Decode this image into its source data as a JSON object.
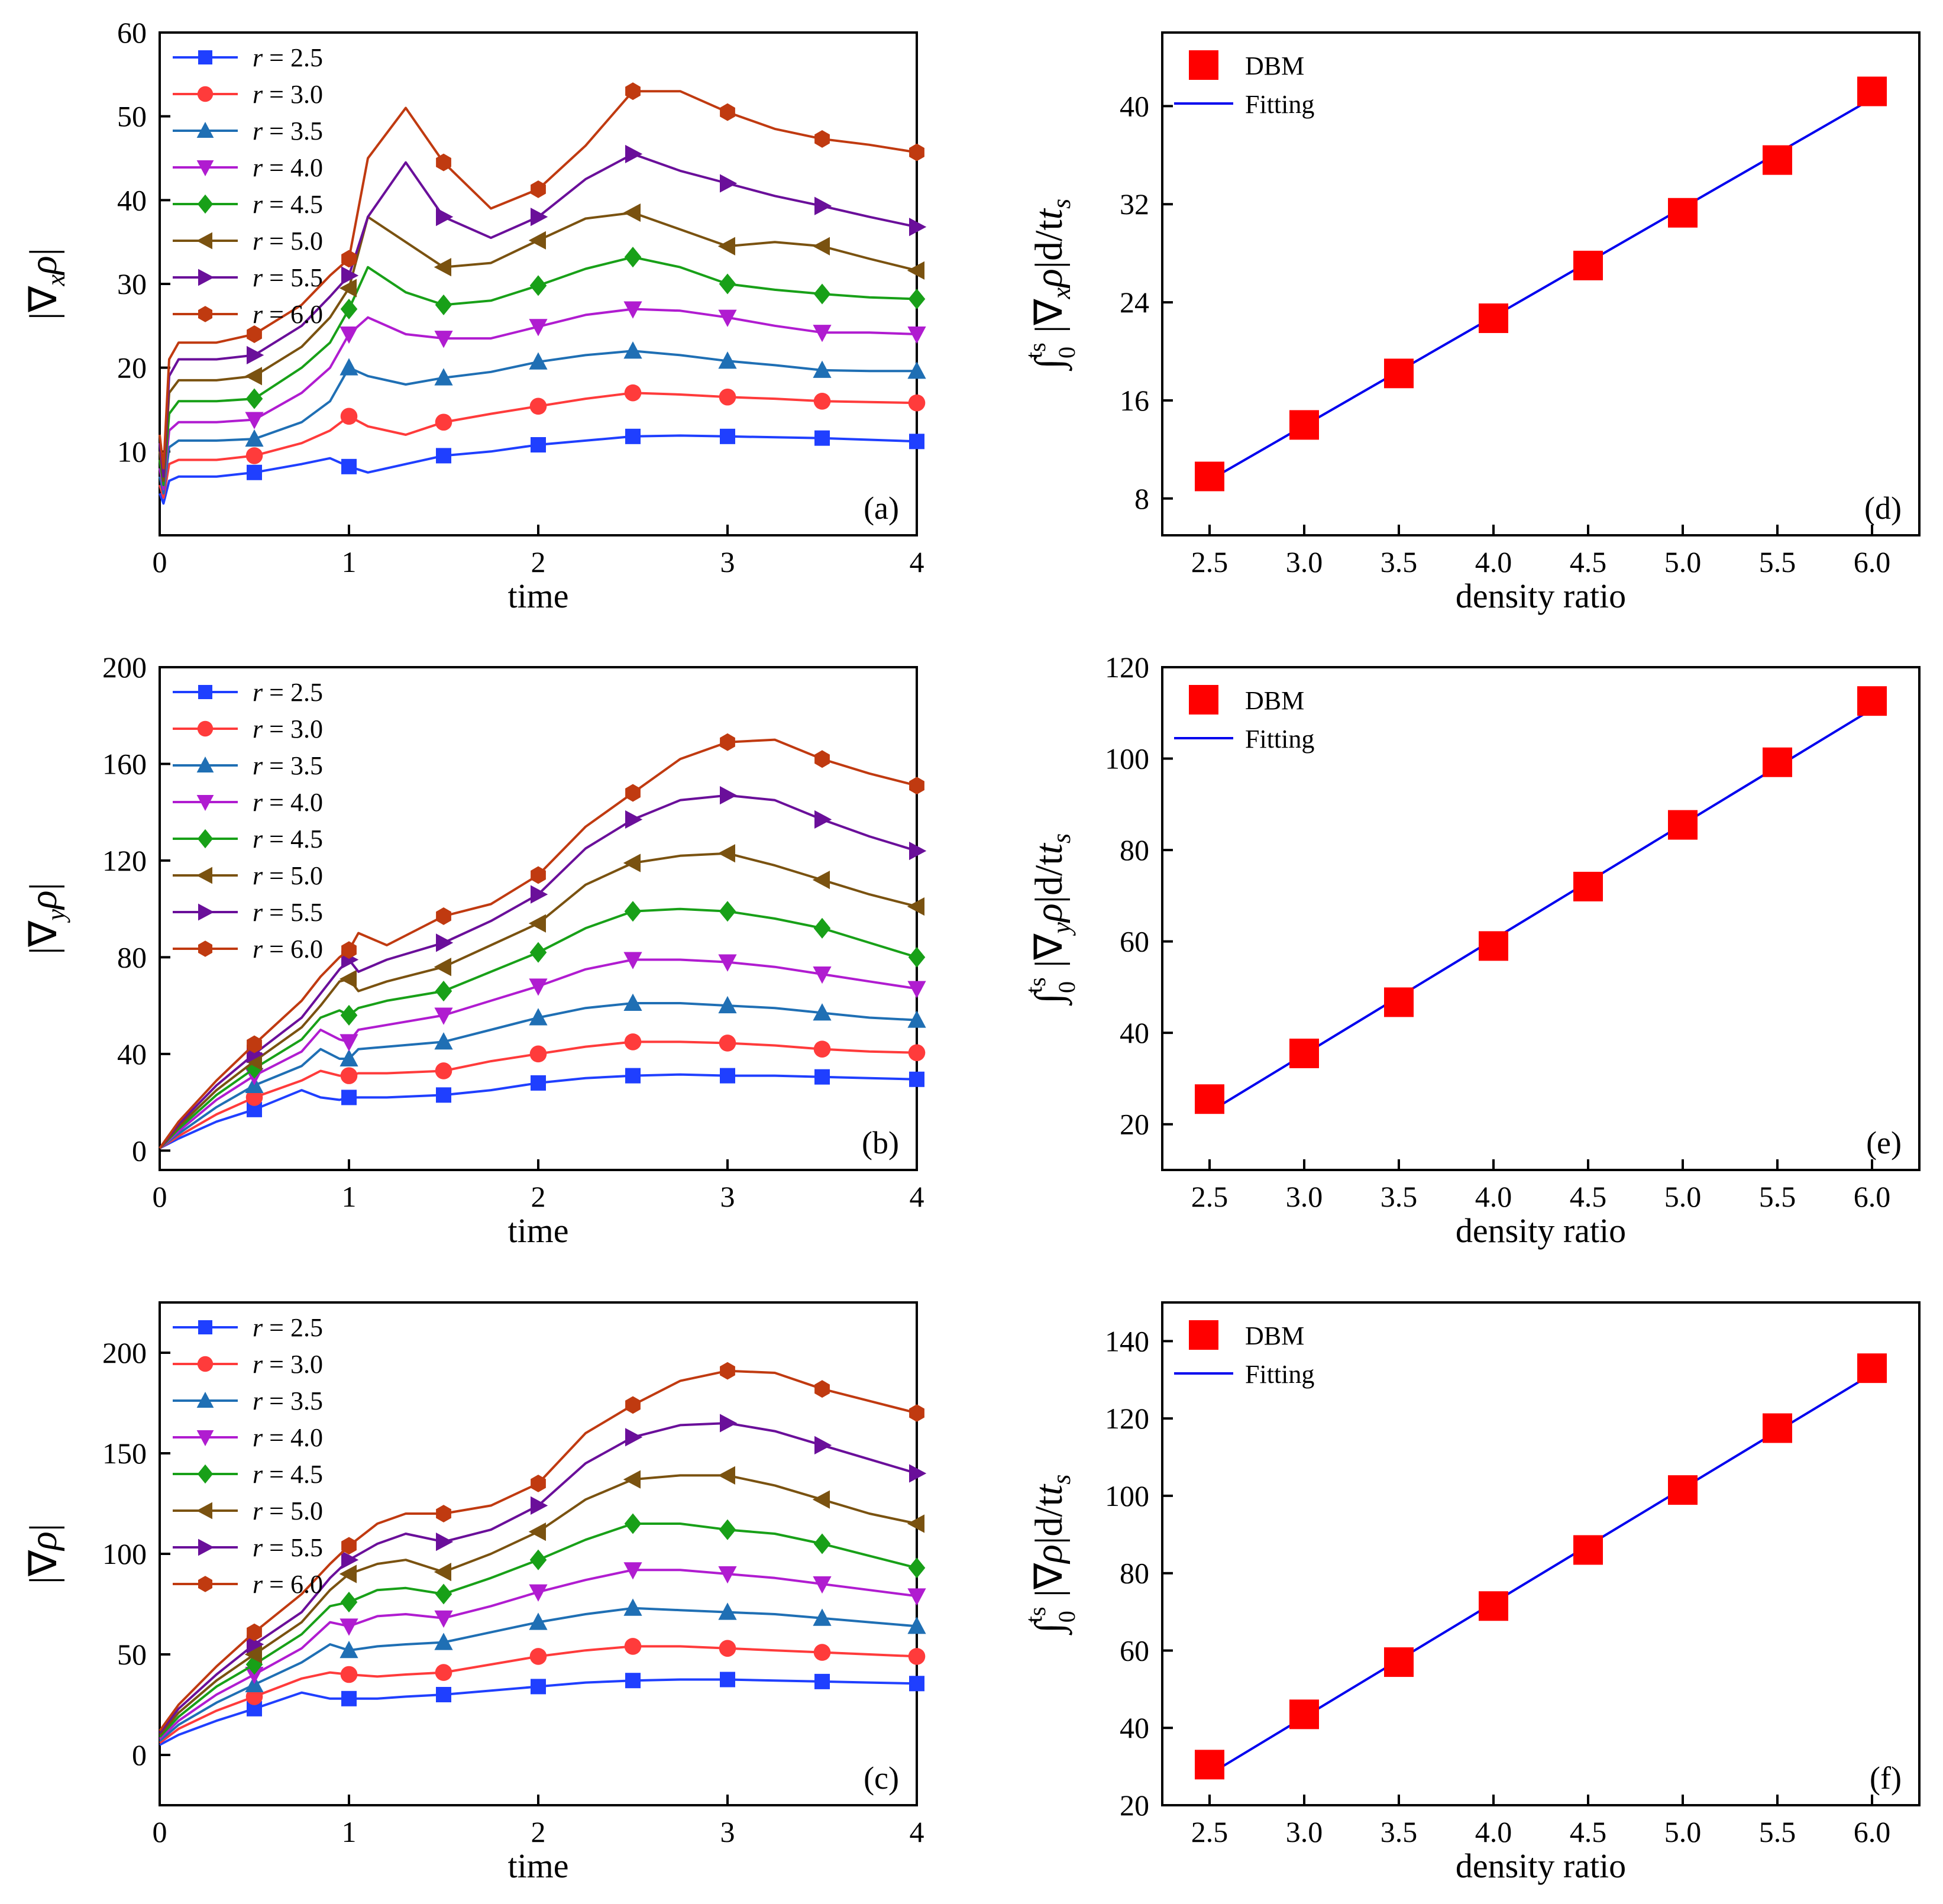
{
  "colors": [
    "#1f3fff",
    "#ff3b3b",
    "#1f6fb4",
    "#b01cd0",
    "#18a018",
    "#7a5210",
    "#6a0f9a",
    "#c03a10"
  ],
  "dbm_color": "#ff0000",
  "fit_color": "#0000ee",
  "chart_data": [
    {
      "id": "a",
      "type": "line",
      "panel_label": "(a)",
      "xlabel": "time",
      "ylabel": {
        "main": "|∇",
        "sub": "x",
        "rho": "ρ",
        "tail": "|"
      },
      "xlim": [
        0,
        4
      ],
      "ylim": [
        0,
        60
      ],
      "xticks": [
        0,
        1,
        2,
        3,
        4
      ],
      "xtick_labels": [
        "0",
        "1",
        "2",
        "3",
        "4"
      ],
      "yticks": [
        10,
        20,
        30,
        40,
        50,
        60
      ],
      "ytick_labels": [
        "10",
        "20",
        "30",
        "40",
        "50",
        "60"
      ],
      "x": [
        0,
        0.02,
        0.05,
        0.1,
        0.3,
        0.5,
        0.75,
        0.9,
        1.0,
        1.1,
        1.3,
        1.5,
        1.75,
        2.0,
        2.25,
        2.5,
        2.75,
        3.0,
        3.25,
        3.5,
        3.75,
        4.0
      ],
      "markers_x": [
        0.5,
        1.0,
        1.5,
        2.0,
        2.5,
        3.0,
        3.5,
        4.0
      ],
      "series": [
        {
          "name": "r = 2.5",
          "marker": "square",
          "values": [
            5,
            3.8,
            6.5,
            7,
            7,
            7.5,
            8.5,
            9.2,
            8.2,
            7.5,
            8.5,
            9.5,
            10,
            10.8,
            11.3,
            11.8,
            11.9,
            11.8,
            11.7,
            11.6,
            11.4,
            11.2
          ]
        },
        {
          "name": "r = 3.0",
          "marker": "circle",
          "values": [
            6,
            4.5,
            8.5,
            9,
            9,
            9.5,
            11,
            12.5,
            14.2,
            13,
            12,
            13.5,
            14.5,
            15.4,
            16.3,
            17,
            16.8,
            16.5,
            16.3,
            16,
            15.9,
            15.8
          ]
        },
        {
          "name": "r = 3.5",
          "marker": "triangle-up",
          "values": [
            7,
            5,
            10.5,
            11.3,
            11.3,
            11.5,
            13.5,
            16,
            20,
            19,
            18,
            18.8,
            19.5,
            20.7,
            21.5,
            22,
            21.5,
            20.8,
            20.3,
            19.7,
            19.6,
            19.6
          ]
        },
        {
          "name": "r = 4.0",
          "marker": "triangle-down",
          "values": [
            8,
            5.5,
            12.5,
            13.5,
            13.5,
            13.8,
            17,
            20,
            24,
            26,
            24,
            23.5,
            23.5,
            24.9,
            26.3,
            27,
            26.8,
            26,
            25,
            24.2,
            24.2,
            24
          ]
        },
        {
          "name": "r = 4.5",
          "marker": "diamond",
          "values": [
            9,
            6,
            14.5,
            16,
            16,
            16.3,
            20,
            23,
            27,
            32,
            29,
            27.5,
            28,
            29.8,
            31.8,
            33.2,
            32,
            30,
            29.3,
            28.8,
            28.4,
            28.2
          ]
        },
        {
          "name": "r = 5.0",
          "marker": "triangle-left",
          "values": [
            10,
            6.5,
            17,
            18.5,
            18.5,
            19,
            22.5,
            26,
            29.5,
            38,
            35,
            32,
            32.5,
            35.2,
            37.8,
            38.5,
            36.5,
            34.5,
            35,
            34.5,
            33,
            31.6
          ]
        },
        {
          "name": "r = 5.5",
          "marker": "triangle-right",
          "values": [
            11,
            7,
            19,
            21,
            21,
            21.5,
            25,
            28.5,
            31,
            38,
            44.5,
            38,
            35.5,
            38,
            42.5,
            45.5,
            43.5,
            42,
            40.5,
            39.3,
            38,
            36.8
          ]
        },
        {
          "name": "r = 6.0",
          "marker": "hexagon",
          "values": [
            12,
            8,
            21,
            23,
            23,
            24,
            27.5,
            31,
            33,
            45,
            51,
            44.5,
            39,
            41.3,
            46.5,
            53,
            53,
            50.5,
            48.5,
            47.3,
            46.6,
            45.7
          ]
        }
      ]
    },
    {
      "id": "b",
      "type": "line",
      "panel_label": "(b)",
      "xlabel": "time",
      "ylabel": {
        "main": "|∇",
        "sub": "y",
        "rho": "ρ",
        "tail": "|"
      },
      "xlim": [
        0,
        4
      ],
      "ylim": [
        -8,
        200
      ],
      "xticks": [
        0,
        1,
        2,
        3,
        4
      ],
      "xtick_labels": [
        "0",
        "1",
        "2",
        "3",
        "4"
      ],
      "yticks": [
        0,
        40,
        80,
        120,
        160,
        200
      ],
      "ytick_labels": [
        "0",
        "40",
        "80",
        "120",
        "160",
        "200"
      ],
      "x": [
        0,
        0.1,
        0.3,
        0.5,
        0.75,
        0.85,
        0.95,
        1.0,
        1.05,
        1.2,
        1.5,
        1.75,
        2.0,
        2.25,
        2.5,
        2.75,
        3.0,
        3.25,
        3.5,
        3.75,
        4.0
      ],
      "markers_x": [
        0.5,
        1.0,
        1.5,
        2.0,
        2.5,
        3.0,
        3.5,
        4.0
      ],
      "series": [
        {
          "name": "r = 2.5",
          "marker": "square",
          "values": [
            1,
            5,
            12,
            17,
            25,
            22,
            21,
            22,
            22,
            22,
            23,
            25,
            28,
            30,
            31,
            31.5,
            31,
            31,
            30.5,
            30,
            29.5
          ]
        },
        {
          "name": "r = 3.0",
          "marker": "circle",
          "values": [
            1,
            6,
            15,
            22,
            29,
            33,
            31,
            31,
            32,
            32,
            33,
            37,
            40,
            43,
            45,
            45,
            44.5,
            43.5,
            42,
            41,
            40.5
          ]
        },
        {
          "name": "r = 3.5",
          "marker": "triangle-up",
          "values": [
            1,
            7,
            18,
            27,
            35,
            42,
            38,
            38,
            42,
            43,
            45,
            50,
            55,
            59,
            61,
            61,
            60,
            59,
            57,
            55,
            54
          ]
        },
        {
          "name": "r = 4.0",
          "marker": "triangle-down",
          "values": [
            1,
            8,
            21,
            31,
            41,
            50,
            46,
            45,
            50,
            52,
            56,
            62,
            68,
            75,
            79,
            79,
            78,
            76,
            73,
            70,
            67
          ]
        },
        {
          "name": "r = 4.5",
          "marker": "diamond",
          "values": [
            1,
            9,
            23,
            34,
            46,
            55,
            58,
            56,
            59,
            62,
            66,
            74,
            82,
            92,
            99,
            100,
            99,
            96,
            92,
            86,
            80
          ]
        },
        {
          "name": "r = 5.0",
          "marker": "triangle-left",
          "values": [
            1,
            10,
            25,
            37,
            51,
            60,
            70,
            71,
            66,
            70,
            76,
            85,
            94,
            110,
            119,
            122,
            123,
            118,
            112,
            106,
            101
          ]
        },
        {
          "name": "r = 5.5",
          "marker": "triangle-right",
          "values": [
            1,
            11,
            27,
            40,
            55,
            65,
            75,
            79,
            74,
            79,
            86,
            95,
            106,
            125,
            137,
            145,
            147,
            145,
            137,
            130,
            124
          ]
        },
        {
          "name": "r = 6.0",
          "marker": "hexagon",
          "values": [
            1,
            12,
            29,
            44,
            62,
            72,
            80,
            83,
            90,
            85,
            97,
            102,
            114,
            134,
            148,
            162,
            169,
            170,
            162,
            156,
            151
          ]
        }
      ]
    },
    {
      "id": "c",
      "type": "line",
      "panel_label": "(c)",
      "xlabel": "time",
      "ylabel": {
        "main": "|∇",
        "sub": "",
        "rho": "ρ",
        "tail": "|"
      },
      "xlim": [
        0,
        4
      ],
      "ylim": [
        -25,
        225
      ],
      "xticks": [
        0,
        1,
        2,
        3,
        4
      ],
      "xtick_labels": [
        "0",
        "1",
        "2",
        "3",
        "4"
      ],
      "yticks": [
        0,
        50,
        100,
        150,
        200
      ],
      "ytick_labels": [
        "0",
        "50",
        "100",
        "150",
        "200"
      ],
      "x": [
        0,
        0.1,
        0.3,
        0.5,
        0.75,
        0.9,
        1.0,
        1.15,
        1.3,
        1.5,
        1.75,
        2.0,
        2.25,
        2.5,
        2.75,
        3.0,
        3.25,
        3.5,
        3.75,
        4.0
      ],
      "markers_x": [
        0.5,
        1.0,
        1.5,
        2.0,
        2.5,
        3.0,
        3.5,
        4.0
      ],
      "series": [
        {
          "name": "r = 2.5",
          "marker": "square",
          "values": [
            5,
            10,
            17,
            23,
            31,
            28,
            28,
            28,
            29,
            30,
            32,
            34,
            36,
            37,
            37.5,
            37.5,
            37,
            36.5,
            36,
            35.5
          ]
        },
        {
          "name": "r = 3.0",
          "marker": "circle",
          "values": [
            6,
            13,
            22,
            29,
            38,
            41,
            40,
            39,
            40,
            41,
            45,
            49,
            52,
            54,
            54,
            53,
            52,
            51,
            50,
            49
          ]
        },
        {
          "name": "r = 3.5",
          "marker": "triangle-up",
          "values": [
            7,
            15,
            26,
            35,
            46,
            55,
            52,
            54,
            55,
            56,
            61,
            66,
            70,
            73,
            72,
            71,
            70,
            68,
            66,
            64
          ]
        },
        {
          "name": "r = 4.0",
          "marker": "triangle-down",
          "values": [
            8,
            17,
            30,
            40,
            53,
            66,
            64,
            69,
            70,
            68,
            74,
            81,
            87,
            92,
            92,
            90,
            88,
            85,
            82,
            79
          ]
        },
        {
          "name": "r = 4.5",
          "marker": "diamond",
          "values": [
            9,
            19,
            34,
            45,
            60,
            74,
            76,
            82,
            83,
            80,
            88,
            97,
            107,
            115,
            115,
            112,
            110,
            105,
            99,
            93
          ]
        },
        {
          "name": "r = 5.0",
          "marker": "triangle-left",
          "values": [
            10,
            21,
            37,
            50,
            66,
            82,
            90,
            95,
            97,
            91,
            100,
            111,
            127,
            137,
            139,
            139,
            134,
            127,
            120,
            115
          ]
        },
        {
          "name": "r = 5.5",
          "marker": "triangle-right",
          "values": [
            11,
            23,
            40,
            55,
            71,
            88,
            97,
            105,
            110,
            106,
            112,
            124,
            145,
            158,
            164,
            165,
            161,
            154,
            147,
            140
          ]
        },
        {
          "name": "r = 6.0",
          "marker": "hexagon",
          "values": [
            12,
            25,
            44,
            61,
            80,
            95,
            104,
            115,
            120,
            120,
            124,
            135,
            160,
            174,
            186,
            191,
            190,
            182,
            176,
            170
          ]
        }
      ]
    },
    {
      "id": "d",
      "type": "scatter",
      "panel_label": "(d)",
      "xlabel": "density ratio",
      "ylabel": {
        "main": "|∇",
        "sub": "x",
        "rho": "ρ",
        "tail": "|dt/t"
      },
      "xlim": [
        2.25,
        6.25
      ],
      "ylim": [
        5,
        46
      ],
      "xticks": [
        2.5,
        3.0,
        3.5,
        4.0,
        4.5,
        5.0,
        5.5,
        6.0
      ],
      "xtick_labels": [
        "2.5",
        "3.0",
        "3.5",
        "4.0",
        "4.5",
        "5.0",
        "5.5",
        "6.0"
      ],
      "yticks": [
        8,
        16,
        24,
        32,
        40
      ],
      "ytick_labels": [
        "8",
        "16",
        "24",
        "32",
        "40"
      ],
      "x": [
        2.5,
        3.0,
        3.5,
        4.0,
        4.5,
        5.0,
        5.5,
        6.0
      ],
      "series": [
        {
          "name": "DBM",
          "values": [
            9.8,
            14.0,
            18.2,
            22.7,
            27.0,
            31.3,
            35.6,
            41.2
          ]
        }
      ],
      "fit": {
        "name": "Fitting",
        "x": [
          2.5,
          6.0
        ],
        "y": [
          9.5,
          40.6
        ]
      },
      "legend": [
        "DBM",
        "Fitting"
      ]
    },
    {
      "id": "e",
      "type": "scatter",
      "panel_label": "(e)",
      "xlabel": "density ratio",
      "ylabel": {
        "main": "|∇",
        "sub": "y",
        "rho": "ρ",
        "tail": "|dt/t"
      },
      "xlim": [
        2.25,
        6.25
      ],
      "ylim": [
        10,
        120
      ],
      "xticks": [
        2.5,
        3.0,
        3.5,
        4.0,
        4.5,
        5.0,
        5.5,
        6.0
      ],
      "xtick_labels": [
        "2.5",
        "3.0",
        "3.5",
        "4.0",
        "4.5",
        "5.0",
        "5.5",
        "6.0"
      ],
      "yticks": [
        20,
        40,
        60,
        80,
        100,
        120
      ],
      "ytick_labels": [
        "20",
        "40",
        "60",
        "80",
        "100",
        "120"
      ],
      "x": [
        2.5,
        3.0,
        3.5,
        4.0,
        4.5,
        5.0,
        5.5,
        6.0
      ],
      "series": [
        {
          "name": "DBM",
          "values": [
            25.5,
            35.5,
            46.7,
            59.0,
            72.0,
            85.5,
            99.2,
            112.6
          ]
        }
      ],
      "fit": {
        "name": "Fitting",
        "x": [
          2.5,
          6.0
        ],
        "y": [
          22.7,
          110.8
        ]
      },
      "legend": [
        "DBM",
        "Fitting"
      ]
    },
    {
      "id": "f",
      "type": "scatter",
      "panel_label": "(f)",
      "xlabel": "density ratio",
      "ylabel": {
        "main": "|∇",
        "sub": "",
        "rho": "ρ",
        "tail": "|dt/t"
      },
      "xlim": [
        2.25,
        6.25
      ],
      "ylim": [
        20,
        150
      ],
      "xticks": [
        2.5,
        3.0,
        3.5,
        4.0,
        4.5,
        5.0,
        5.5,
        6.0
      ],
      "xtick_labels": [
        "2.5",
        "3.0",
        "3.5",
        "4.0",
        "4.5",
        "5.0",
        "5.5",
        "6.0"
      ],
      "yticks": [
        20,
        40,
        60,
        80,
        100,
        120,
        140
      ],
      "ytick_labels": [
        "20",
        "40",
        "60",
        "80",
        "100",
        "120",
        "140"
      ],
      "x": [
        2.5,
        3.0,
        3.5,
        4.0,
        4.5,
        5.0,
        5.5,
        6.0
      ],
      "series": [
        {
          "name": "DBM",
          "values": [
            30.5,
            43.5,
            57.0,
            71.5,
            86.0,
            101.5,
            117.5,
            133.0
          ]
        }
      ],
      "fit": {
        "name": "Fitting",
        "x": [
          2.5,
          6.0
        ],
        "y": [
          28.0,
          131.5
        ]
      },
      "legend": [
        "DBM",
        "Fitting"
      ]
    }
  ],
  "integral": {
    "sign": "∫",
    "upper": "t",
    "upper_sub": "s",
    "lower": "0",
    "tail_sub": "s"
  }
}
